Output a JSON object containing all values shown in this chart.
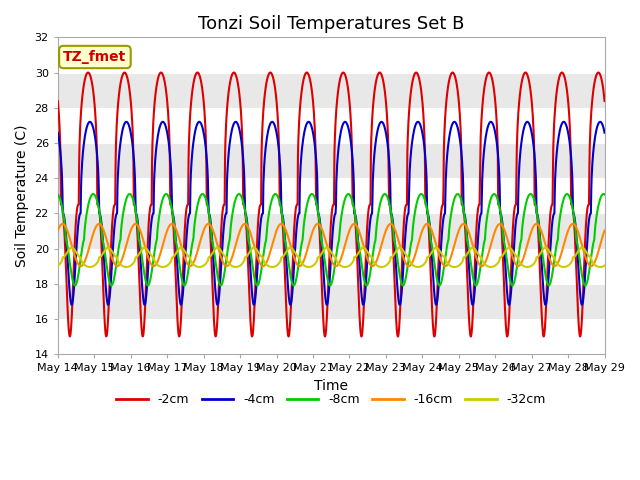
{
  "title": "Tonzi Soil Temperatures Set B",
  "xlabel": "Time",
  "ylabel": "Soil Temperature (C)",
  "ylim": [
    14,
    32
  ],
  "annotation_label": "TZ_fmet",
  "x_tick_labels": [
    "May 14",
    "May 15",
    "May 16",
    "May 17",
    "May 18",
    "May 19",
    "May 20",
    "May 21",
    "May 22",
    "May 23",
    "May 24",
    "May 25",
    "May 26",
    "May 27",
    "May 28",
    "May 29"
  ],
  "series": [
    {
      "label": "-2cm",
      "color": "#dd0000",
      "amplitude": 7.5,
      "mean": 22.5,
      "phase_shift": 0.0,
      "skew": 3.0
    },
    {
      "label": "-4cm",
      "color": "#0000cc",
      "amplitude": 5.2,
      "mean": 22.0,
      "phase_shift": 0.05,
      "skew": 2.5
    },
    {
      "label": "-8cm",
      "color": "#00cc00",
      "amplitude": 2.6,
      "mean": 20.5,
      "phase_shift": 0.14,
      "skew": 1.5
    },
    {
      "label": "-16cm",
      "color": "#ff8800",
      "amplitude": 1.2,
      "mean": 20.2,
      "phase_shift": 0.3,
      "skew": 1.0
    },
    {
      "label": "-32cm",
      "color": "#cccc00",
      "amplitude": 0.55,
      "mean": 19.5,
      "phase_shift": 0.55,
      "skew": 0.5
    }
  ],
  "background_color": "#ffffff",
  "plot_bg_color": "#e8e8e8",
  "linewidth": 1.5,
  "title_fontsize": 13,
  "label_fontsize": 10,
  "tick_fontsize": 8,
  "legend_fontsize": 9,
  "yticks": [
    14,
    16,
    18,
    20,
    22,
    24,
    26,
    28,
    30,
    32
  ]
}
